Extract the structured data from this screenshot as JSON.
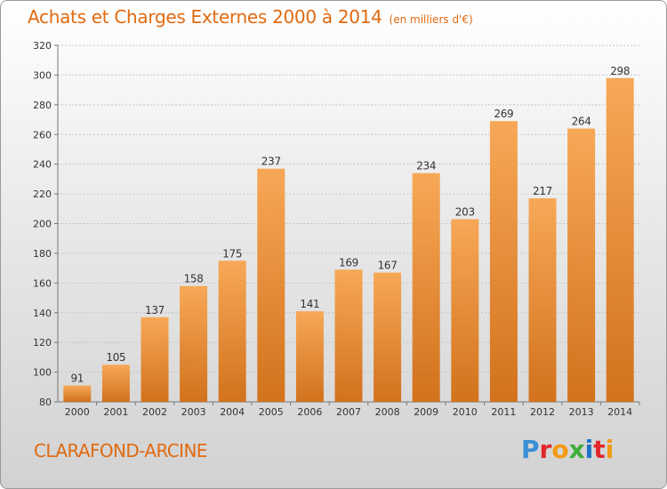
{
  "title": "Achats et Charges Externes 2000 à 2014",
  "subtitle": "(en milliers d'€)",
  "town": "CLARAFOND-ARCINE",
  "brand": {
    "letters": [
      "P",
      "r",
      "o",
      "x",
      "i",
      "t",
      "i"
    ],
    "colors": [
      "#3b8fd6",
      "#e0272a",
      "#f29a12",
      "#3fae3a",
      "#1f73c7",
      "#e0272a",
      "#f29a12"
    ]
  },
  "colors": {
    "accent": "#e06a10",
    "bar_light": "#f7a857",
    "bar_dark": "#d2721c"
  },
  "chart_data": {
    "type": "bar",
    "categories": [
      "2000",
      "2001",
      "2002",
      "2003",
      "2004",
      "2005",
      "2006",
      "2007",
      "2008",
      "2009",
      "2010",
      "2011",
      "2012",
      "2013",
      "2014"
    ],
    "values": [
      91,
      105,
      137,
      158,
      175,
      237,
      141,
      169,
      167,
      234,
      203,
      269,
      217,
      264,
      298
    ],
    "ylim": [
      80,
      320
    ],
    "yticks": [
      80,
      100,
      120,
      140,
      160,
      180,
      200,
      220,
      240,
      260,
      280,
      300,
      320
    ],
    "grid": true,
    "xlabel": "",
    "ylabel": ""
  }
}
